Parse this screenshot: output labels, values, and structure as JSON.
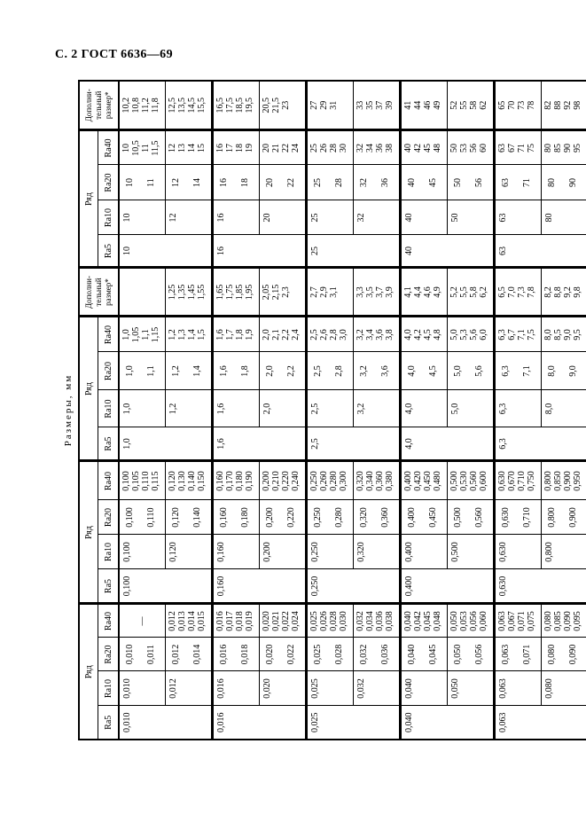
{
  "page_header": "С. 2 ГОСТ 6636—69",
  "colors": {
    "ink": "#000000",
    "paper": "#ffffff"
  },
  "table": {
    "caption": "Размеры, мм",
    "row_group_label": "Ряд",
    "series_labels": [
      "Ra5",
      "Ra10",
      "Ra20",
      "Ra40"
    ],
    "extra_header_lines": [
      "Дополни-",
      "тельный",
      "размер*"
    ],
    "groups": [
      {
        "extra": false,
        "clusters": [
          {
            "ra5": "0,010",
            "ra10": "0,010",
            "ra20": [
              "0,010",
              "0,011"
            ],
            "ra40": "—"
          },
          {
            "ra10": "0,012",
            "ra20": [
              "0,012",
              "0,014"
            ],
            "ra40": [
              "0,012",
              "0,013",
              "0,014",
              "0,015"
            ]
          },
          {
            "ra5": "0,016",
            "ra10": "0,016",
            "ra20": [
              "0,016",
              "0,018"
            ],
            "ra40": [
              "0,016",
              "0,017",
              "0,018",
              "0,019"
            ]
          },
          {
            "ra10": "0,020",
            "ra20": [
              "0,020",
              "0,022"
            ],
            "ra40": [
              "0,020",
              "0,021",
              "0,022",
              "0,024"
            ]
          },
          {
            "ra5": "0,025",
            "ra10": "0,025",
            "ra20": [
              "0,025",
              "0,028"
            ],
            "ra40": [
              "0,025",
              "0,026",
              "0,028",
              "0,030"
            ]
          },
          {
            "ra10": "0,032",
            "ra20": [
              "0,032",
              "0,036"
            ],
            "ra40": [
              "0,032",
              "0,034",
              "0,036",
              "0,038"
            ]
          },
          {
            "ra5": "0,040",
            "ra10": "0,040",
            "ra20": [
              "0,040",
              "0,045"
            ],
            "ra40": [
              "0,040",
              "0,042",
              "0,045",
              "0,048"
            ]
          },
          {
            "ra10": "0,050",
            "ra20": [
              "0,050",
              "0,056"
            ],
            "ra40": [
              "0,050",
              "0,053",
              "0,056",
              "0,060"
            ]
          },
          {
            "ra5": "0,063",
            "ra10": "0,063",
            "ra20": [
              "0,063",
              "0,071"
            ],
            "ra40": [
              "0,063",
              "0,067",
              "0,071",
              "0,075"
            ]
          },
          {
            "ra10": "0,080",
            "ra20": [
              "0,080",
              "0,090"
            ],
            "ra40": [
              "0,080",
              "0,085",
              "0,090",
              "0,095"
            ]
          }
        ]
      },
      {
        "extra": false,
        "clusters": [
          {
            "ra5": "0,100",
            "ra10": "0,100",
            "ra20": [
              "0,100",
              "0,110"
            ],
            "ra40": [
              "0,100",
              "0,105",
              "0,110",
              "0,115"
            ]
          },
          {
            "ra10": "0,120",
            "ra20": [
              "0,120",
              "0,140"
            ],
            "ra40": [
              "0,120",
              "0,130",
              "0,140",
              "0,150"
            ]
          },
          {
            "ra5": "0,160",
            "ra10": "0,160",
            "ra20": [
              "0,160",
              "0,180"
            ],
            "ra40": [
              "0,160",
              "0,170",
              "0,180",
              "0,190"
            ]
          },
          {
            "ra10": "0,200",
            "ra20": [
              "0,200",
              "0,220"
            ],
            "ra40": [
              "0,200",
              "0,210",
              "0,220",
              "0,240"
            ]
          },
          {
            "ra5": "0,250",
            "ra10": "0,250",
            "ra20": [
              "0,250",
              "0,280"
            ],
            "ra40": [
              "0,250",
              "0,260",
              "0,280",
              "0,300"
            ]
          },
          {
            "ra10": "0,320",
            "ra20": [
              "0,320",
              "0,360"
            ],
            "ra40": [
              "0,320",
              "0,340",
              "0,360",
              "0,380"
            ]
          },
          {
            "ra5": "0,400",
            "ra10": "0,400",
            "ra20": [
              "0,400",
              "0,450"
            ],
            "ra40": [
              "0,400",
              "0,420",
              "0,450",
              "0,480"
            ]
          },
          {
            "ra10": "0,500",
            "ra20": [
              "0,500",
              "0,560"
            ],
            "ra40": [
              "0,500",
              "0,530",
              "0,560",
              "0,600"
            ]
          },
          {
            "ra5": "0,630",
            "ra10": "0,630",
            "ra20": [
              "0,630",
              "0,710"
            ],
            "ra40": [
              "0,630",
              "0,670",
              "0,710",
              "0,750"
            ]
          },
          {
            "ra10": "0,800",
            "ra20": [
              "0,800",
              "0,900"
            ],
            "ra40": [
              "0,800",
              "0,850",
              "0,900",
              "0,950"
            ]
          }
        ]
      },
      {
        "extra": true,
        "clusters": [
          {
            "ra5": "1,0",
            "ra10": "1,0",
            "ra20": [
              "1,0",
              "1,1"
            ],
            "ra40": [
              "1,0",
              "1,05",
              "1,1",
              "1,15"
            ],
            "dop": []
          },
          {
            "ra10": "1,2",
            "ra20": [
              "1,2",
              "1,4"
            ],
            "ra40": [
              "1,2",
              "1,3",
              "1,4",
              "1,5"
            ],
            "dop": [
              "1,25",
              "1,35",
              "1,45",
              "1,55"
            ]
          },
          {
            "ra5": "1,6",
            "ra10": "1,6",
            "ra20": [
              "1,6",
              "1,8"
            ],
            "ra40": [
              "1,6",
              "1,7",
              "1,8",
              "1,9"
            ],
            "dop": [
              "1,65",
              "1,75",
              "1,85",
              "1,95"
            ]
          },
          {
            "ra10": "2,0",
            "ra20": [
              "2,0",
              "2,2"
            ],
            "ra40": [
              "2,0",
              "2,1",
              "2,2",
              "2,4"
            ],
            "dop": [
              "2,05",
              "2,15",
              "2,3"
            ]
          },
          {
            "ra5": "2,5",
            "ra10": "2,5",
            "ra20": [
              "2,5",
              "2,8"
            ],
            "ra40": [
              "2,5",
              "2,6",
              "2,8",
              "3,0"
            ],
            "dop": [
              "2,7",
              "2,9",
              "3,1"
            ]
          },
          {
            "ra10": "3,2",
            "ra20": [
              "3,2",
              "3,6"
            ],
            "ra40": [
              "3,2",
              "3,4",
              "3,6",
              "3,8"
            ],
            "dop": [
              "3,3",
              "3,5",
              "3,7",
              "3,9"
            ]
          },
          {
            "ra5": "4,0",
            "ra10": "4,0",
            "ra20": [
              "4,0",
              "4,5"
            ],
            "ra40": [
              "4,0",
              "4,2",
              "4,5",
              "4,8"
            ],
            "dop": [
              "4,1",
              "4,4",
              "4,6",
              "4,9"
            ]
          },
          {
            "ra10": "5,0",
            "ra20": [
              "5,0",
              "5,6"
            ],
            "ra40": [
              "5,0",
              "5,3",
              "5,6",
              "6,0"
            ],
            "dop": [
              "5,2",
              "5,5",
              "5,8",
              "6,2"
            ]
          },
          {
            "ra5": "6,3",
            "ra10": "6,3",
            "ra20": [
              "6,3",
              "7,1"
            ],
            "ra40": [
              "6,3",
              "6,7",
              "7,1",
              "7,5"
            ],
            "dop": [
              "6,5",
              "7,0",
              "7,3",
              "7,8"
            ]
          },
          {
            "ra10": "8,0",
            "ra20": [
              "8,0",
              "9,0"
            ],
            "ra40": [
              "8,0",
              "8,5",
              "9,0",
              "9,5"
            ],
            "dop": [
              "8,2",
              "8,8",
              "9,2",
              "9,8"
            ]
          }
        ]
      },
      {
        "extra": true,
        "clusters": [
          {
            "ra5": "10",
            "ra10": "10",
            "ra20": [
              "10",
              "11"
            ],
            "ra40": [
              "10",
              "10,5",
              "11",
              "11,5"
            ],
            "dop": [
              "10,2",
              "10,8",
              "11,2",
              "11,8"
            ]
          },
          {
            "ra10": "12",
            "ra20": [
              "12",
              "14"
            ],
            "ra40": [
              "12",
              "13",
              "14",
              "15"
            ],
            "dop": [
              "12,5",
              "13,5",
              "14,5",
              "15,5"
            ]
          },
          {
            "ra5": "16",
            "ra10": "16",
            "ra20": [
              "16",
              "18"
            ],
            "ra40": [
              "16",
              "17",
              "18",
              "19"
            ],
            "dop": [
              "16,5",
              "17,5",
              "18,5",
              "19,5"
            ]
          },
          {
            "ra10": "20",
            "ra20": [
              "20",
              "22"
            ],
            "ra40": [
              "20",
              "21",
              "22",
              "24"
            ],
            "dop": [
              "20,5",
              "21,5",
              "23"
            ]
          },
          {
            "ra5": "25",
            "ra10": "25",
            "ra20": [
              "25",
              "28"
            ],
            "ra40": [
              "25",
              "26",
              "28",
              "30"
            ],
            "dop": [
              "27",
              "29",
              "31"
            ]
          },
          {
            "ra10": "32",
            "ra20": [
              "32",
              "36"
            ],
            "ra40": [
              "32",
              "34",
              "36",
              "38"
            ],
            "dop": [
              "33",
              "35",
              "37",
              "39"
            ]
          },
          {
            "ra5": "40",
            "ra10": "40",
            "ra20": [
              "40",
              "45"
            ],
            "ra40": [
              "40",
              "42",
              "45",
              "48"
            ],
            "dop": [
              "41",
              "44",
              "46",
              "49"
            ]
          },
          {
            "ra10": "50",
            "ra20": [
              "50",
              "56"
            ],
            "ra40": [
              "50",
              "53",
              "56",
              "60"
            ],
            "dop": [
              "52",
              "55",
              "58",
              "62"
            ]
          },
          {
            "ra5": "63",
            "ra10": "63",
            "ra20": [
              "63",
              "71"
            ],
            "ra40": [
              "63",
              "67",
              "71",
              "75"
            ],
            "dop": [
              "65",
              "70",
              "73",
              "78"
            ]
          },
          {
            "ra10": "80",
            "ra20": [
              "80",
              "90"
            ],
            "ra40": [
              "80",
              "85",
              "90",
              "95"
            ],
            "dop": [
              "82",
              "88",
              "92",
              "98"
            ]
          }
        ]
      }
    ]
  }
}
